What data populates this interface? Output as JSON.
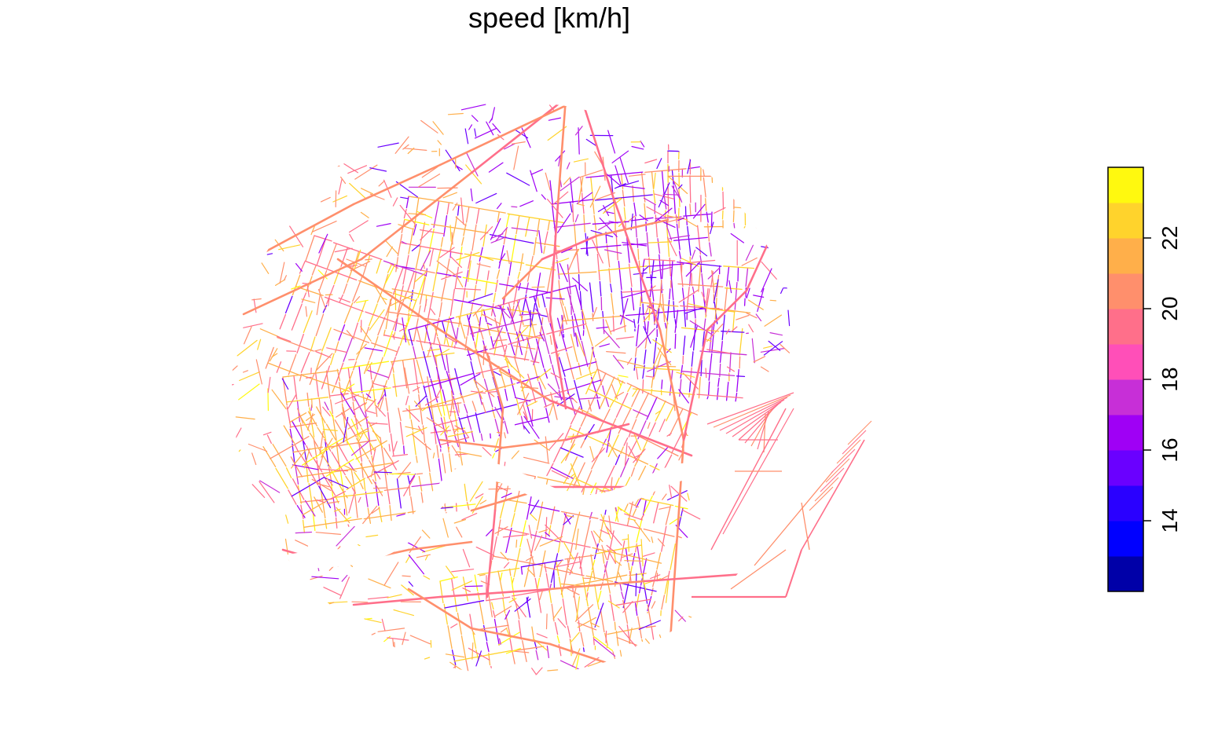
{
  "title": "speed [km/h]",
  "chart_data": {
    "type": "heatmap",
    "title": "speed [km/h]",
    "variable": "speed",
    "unit": "km/h",
    "colorbar": {
      "range": [
        12,
        24
      ],
      "ticks": [
        "14",
        "16",
        "18",
        "20",
        "22"
      ],
      "tick_values": [
        14,
        16,
        18,
        20,
        22
      ],
      "bins": [
        {
          "from": 12,
          "to": 13,
          "color": "#0000A8"
        },
        {
          "from": 13,
          "to": 14,
          "color": "#0000FF"
        },
        {
          "from": 14,
          "to": 15,
          "color": "#2A00FF"
        },
        {
          "from": 15,
          "to": 16,
          "color": "#6A00FF"
        },
        {
          "from": 16,
          "to": 17,
          "color": "#9F00F5"
        },
        {
          "from": 17,
          "to": 18,
          "color": "#C72FD7"
        },
        {
          "from": 18,
          "to": 19,
          "color": "#FF4FB8"
        },
        {
          "from": 19,
          "to": 20,
          "color": "#FF6F8A"
        },
        {
          "from": 20,
          "to": 21,
          "color": "#FF8F6C"
        },
        {
          "from": 21,
          "to": 22,
          "color": "#FFAF4A"
        },
        {
          "from": 22,
          "to": 23,
          "color": "#FFD32C"
        },
        {
          "from": 23,
          "to": 24,
          "color": "#FFF90F"
        }
      ],
      "position": "right"
    },
    "dominant_colors": {
      "low_speed": "#6A00FF",
      "mid_speed": "#FF6F8A",
      "high_speed": "#FFAF4A"
    }
  }
}
